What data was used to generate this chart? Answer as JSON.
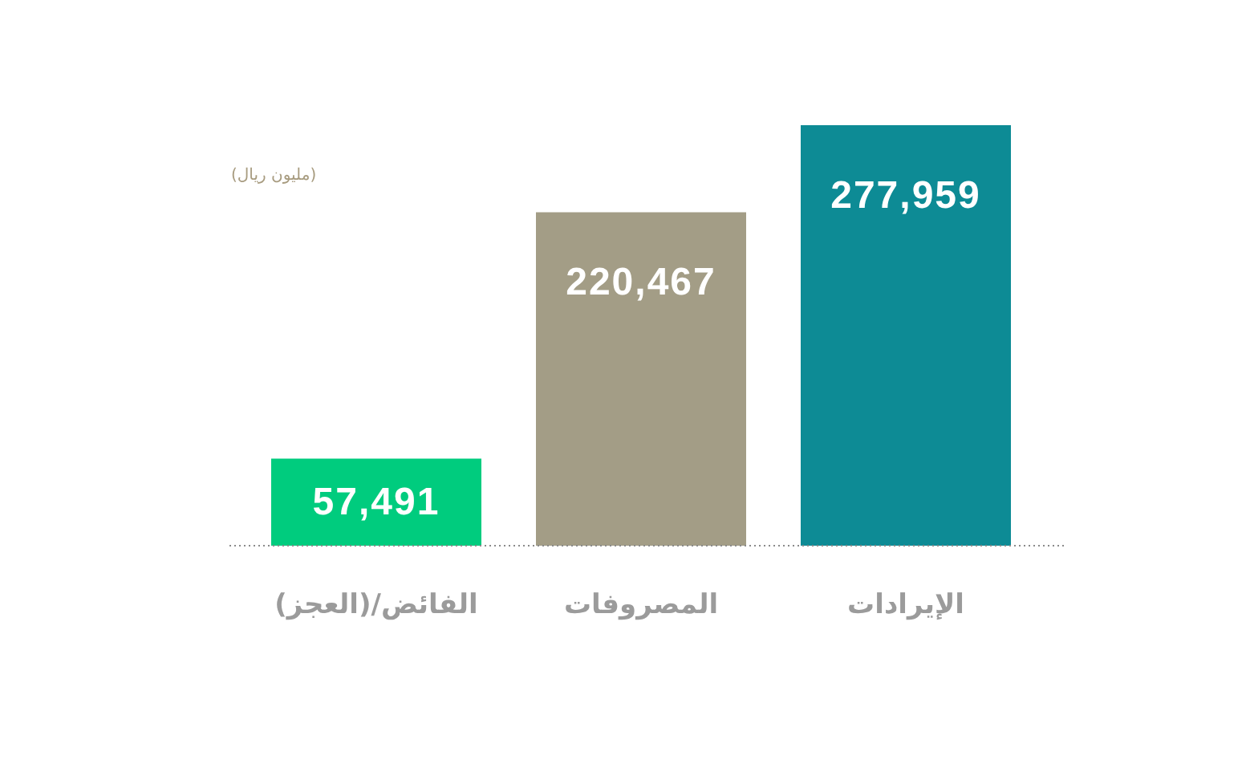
{
  "chart_data": {
    "type": "bar",
    "ylabel": "(مليون ريال)",
    "categories": [
      "الفائض/(العجز)",
      "المصروفات",
      "الإيرادات"
    ],
    "values": [
      57491,
      220467,
      277959
    ],
    "value_labels": [
      "57,491",
      "220,467",
      "277,959"
    ],
    "colors": [
      "#00cc7e",
      "#a39d86",
      "#0d8b95"
    ]
  }
}
